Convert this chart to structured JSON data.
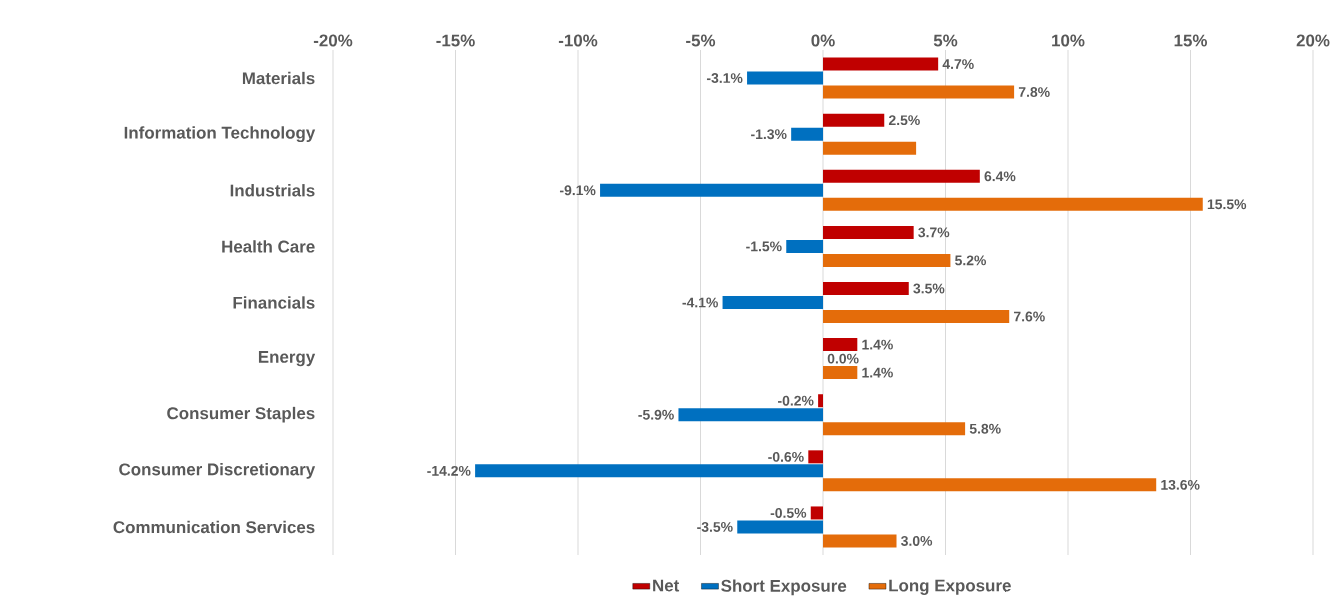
{
  "chart_data": {
    "type": "bar",
    "orientation": "horizontal",
    "categories": [
      "Materials",
      "Information Technology",
      "Industrials",
      "Health Care",
      "Financials",
      "Energy",
      "Consumer Staples",
      "Consumer Discretionary",
      "Communication Services"
    ],
    "series": [
      {
        "name": "Net",
        "color": "#c00000",
        "values": [
          4.7,
          2.5,
          6.4,
          3.7,
          3.5,
          1.4,
          -0.2,
          -0.6,
          -0.5
        ],
        "value_labels": [
          "4.7%",
          "2.5%",
          "6.4%",
          "3.7%",
          "3.5%",
          "1.4%",
          "-0.2%",
          "-0.6%",
          "-0.5%"
        ]
      },
      {
        "name": "Short Exposure",
        "color": "#0070c0",
        "values": [
          -3.1,
          -1.3,
          -9.1,
          -1.5,
          -4.1,
          0.0,
          -5.9,
          -14.2,
          -3.5
        ],
        "value_labels": [
          "-3.1%",
          "-1.3%",
          "-9.1%",
          "-1.5%",
          "-4.1%",
          "0.0%",
          "-5.9%",
          "-14.2%",
          "-3.5%"
        ]
      },
      {
        "name": "Long Exposure",
        "color": "#e46c0a",
        "values": [
          7.8,
          3.8,
          15.5,
          5.2,
          7.6,
          1.4,
          5.8,
          13.6,
          3.0
        ],
        "value_labels": [
          "7.8%",
          null,
          "15.5%",
          "5.2%",
          "7.6%",
          "1.4%",
          "5.8%",
          "13.6%",
          "3.0%"
        ]
      }
    ],
    "xlim": [
      -20,
      20
    ],
    "xticks": [
      {
        "value": -20,
        "label": "-20%"
      },
      {
        "value": -15,
        "label": "-15%"
      },
      {
        "value": -10,
        "label": "-10%"
      },
      {
        "value": -5,
        "label": "-5%"
      },
      {
        "value": 0,
        "label": "0%"
      },
      {
        "value": 5,
        "label": "5%"
      },
      {
        "value": 10,
        "label": "10%"
      },
      {
        "value": 15,
        "label": "15%"
      },
      {
        "value": 20,
        "label": "20%"
      }
    ],
    "grid": "x",
    "legend": "bottom"
  }
}
